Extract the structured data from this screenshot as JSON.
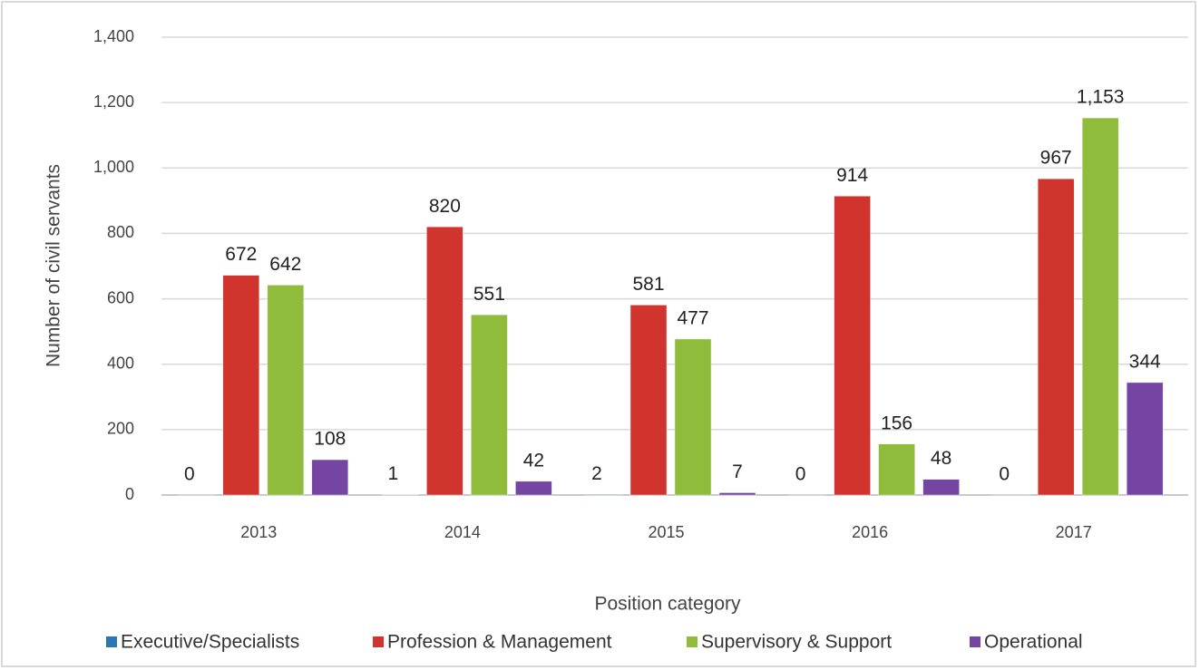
{
  "chart_data": {
    "type": "bar",
    "x_label": "Position category",
    "y_label": "Number of civil servants",
    "categories": [
      "2013",
      "2014",
      "2015",
      "2016",
      "2017"
    ],
    "series": [
      {
        "name": "Executive/Specialists",
        "color": "#2e75b6",
        "values": [
          0,
          1,
          2,
          0,
          0
        ]
      },
      {
        "name": "Profession & Management",
        "color": "#d0342c",
        "values": [
          672,
          820,
          581,
          914,
          967
        ]
      },
      {
        "name": "Supervisory & Support",
        "color": "#8fbc3a",
        "values": [
          642,
          551,
          477,
          156,
          1153
        ],
        "value_labels": [
          "642",
          "551",
          "477",
          "156",
          "1,153"
        ]
      },
      {
        "name": "Operational",
        "color": "#7445a3",
        "values": [
          108,
          42,
          7,
          48,
          344
        ]
      }
    ],
    "ylim": [
      0,
      1400
    ],
    "yticks": [
      0,
      200,
      400,
      600,
      800,
      {
        "value": 1000,
        "label": "1,000"
      },
      {
        "value": 1200,
        "label": "1,200"
      },
      {
        "value": 1400,
        "label": "1,400"
      }
    ],
    "grid": true,
    "legend": "bottom"
  }
}
